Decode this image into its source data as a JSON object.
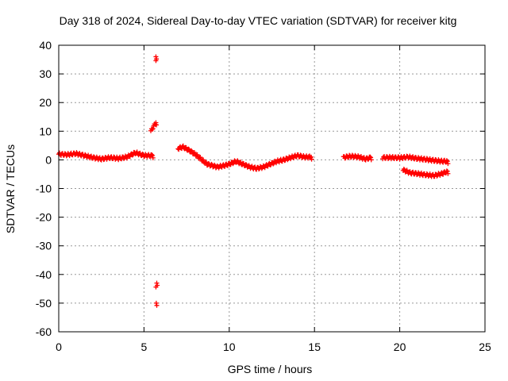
{
  "chart_data": {
    "type": "scatter",
    "title": "Day 318 of 2024, Sidereal Day-to-day VTEC variation (SDTVAR) for receiver kitg",
    "xlabel": "GPS time / hours",
    "ylabel": "SDTVAR / TECUs",
    "xlim": [
      0,
      25
    ],
    "ylim": [
      -60,
      40
    ],
    "xticks": [
      0,
      5,
      10,
      15,
      20,
      25
    ],
    "yticks": [
      -60,
      -50,
      -40,
      -30,
      -20,
      -10,
      0,
      10,
      20,
      30,
      40
    ],
    "grid": true,
    "marker": "plus",
    "color": "#ff0000",
    "series": [
      {
        "name": "SDTVAR",
        "segments": [
          {
            "x": [
              0.0,
              0.5,
              1.0,
              1.5,
              2.0,
              2.5,
              3.0,
              3.5,
              4.0,
              4.5,
              5.0,
              5.5
            ],
            "y": [
              2.0,
              1.8,
              2.2,
              1.5,
              0.8,
              0.3,
              0.8,
              0.5,
              1.0,
              2.5,
              1.5,
              1.5
            ]
          },
          {
            "x": [
              7.0,
              7.3,
              7.6,
              8.0,
              8.3,
              8.7,
              9.0,
              9.3,
              9.7,
              10.0,
              10.4,
              10.8,
              11.2,
              11.6,
              12.0,
              12.4,
              12.8,
              13.2,
              13.6,
              14.0,
              14.4,
              14.8
            ],
            "y": [
              4.0,
              4.5,
              3.5,
              2.0,
              0.5,
              -1.5,
              -2.0,
              -2.5,
              -2.0,
              -1.5,
              -0.5,
              -1.5,
              -2.5,
              -3.0,
              -2.5,
              -1.5,
              -0.5,
              0.0,
              0.8,
              1.5,
              1.0,
              1.0
            ]
          },
          {
            "x": [
              16.7,
              17.0,
              17.3,
              17.6,
              18.0,
              18.3
            ],
            "y": [
              0.8,
              1.2,
              1.2,
              1.0,
              0.3,
              0.8
            ]
          },
          {
            "x": [
              19.0,
              19.5,
              20.0,
              20.5,
              21.0,
              21.5,
              22.0,
              22.5,
              22.8
            ],
            "y": [
              0.8,
              0.8,
              0.7,
              1.0,
              0.5,
              0.2,
              -0.2,
              -0.5,
              -0.5
            ]
          },
          {
            "x": [
              20.2,
              20.6,
              21.0,
              21.5,
              22.0,
              22.5,
              22.8
            ],
            "y": [
              -3.5,
              -4.5,
              -4.8,
              -5.2,
              -5.5,
              -4.8,
              -4.0
            ]
          },
          {
            "x": [
              5.4,
              5.7,
              5.7,
              5.7,
              5.75,
              5.7,
              5.72
            ],
            "y": [
              10.0,
              13.0,
              36.0,
              35.0,
              -43.0,
              -44.0,
              -50.0
            ]
          }
        ]
      }
    ]
  }
}
